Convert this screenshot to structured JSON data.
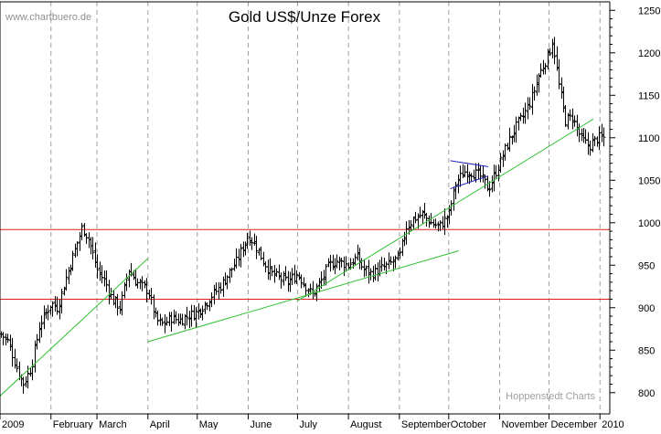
{
  "watermark": "www.chartbuero.de",
  "credit": "Hoppenstedt Charts",
  "chart_data": {
    "type": "ohlc",
    "title": "Gold US$/Unze Forex",
    "xlabel": "",
    "ylabel": "",
    "ylim": [
      775,
      1260
    ],
    "x_range": [
      "2009-01-01",
      "2010-01-07"
    ],
    "y_ticks": [
      800,
      850,
      900,
      950,
      1000,
      1050,
      1100,
      1150,
      1200,
      1250
    ],
    "x_tick_labels": [
      {
        "date": "2009-01-01",
        "label": "2009"
      },
      {
        "date": "2009-02-01",
        "label": "February"
      },
      {
        "date": "2009-03-01",
        "label": "March"
      },
      {
        "date": "2009-04-01",
        "label": "April"
      },
      {
        "date": "2009-05-01",
        "label": "May"
      },
      {
        "date": "2009-06-01",
        "label": "June"
      },
      {
        "date": "2009-07-01",
        "label": "July"
      },
      {
        "date": "2009-08-01",
        "label": "August"
      },
      {
        "date": "2009-09-01",
        "label": "September"
      },
      {
        "date": "2009-10-01",
        "label": "October"
      },
      {
        "date": "2009-11-01",
        "label": "November"
      },
      {
        "date": "2009-12-01",
        "label": "December"
      },
      {
        "date": "2010-01-01",
        "label": "2010"
      }
    ],
    "grid": "vertical-dashed",
    "close_path": [
      [
        "2009-01-01",
        870
      ],
      [
        "2009-01-06",
        860
      ],
      [
        "2009-01-10",
        835
      ],
      [
        "2009-01-15",
        810
      ],
      [
        "2009-01-20",
        830
      ],
      [
        "2009-01-25",
        880
      ],
      [
        "2009-02-01",
        905
      ],
      [
        "2009-02-05",
        900
      ],
      [
        "2009-02-10",
        935
      ],
      [
        "2009-02-15",
        965
      ],
      [
        "2009-02-20",
        995
      ],
      [
        "2009-02-24",
        980
      ],
      [
        "2009-03-01",
        945
      ],
      [
        "2009-03-06",
        930
      ],
      [
        "2009-03-10",
        910
      ],
      [
        "2009-03-15",
        900
      ],
      [
        "2009-03-20",
        945
      ],
      [
        "2009-03-25",
        930
      ],
      [
        "2009-04-01",
        920
      ],
      [
        "2009-04-06",
        885
      ],
      [
        "2009-04-10",
        880
      ],
      [
        "2009-04-15",
        888
      ],
      [
        "2009-04-20",
        885
      ],
      [
        "2009-04-25",
        890
      ],
      [
        "2009-05-01",
        895
      ],
      [
        "2009-05-06",
        905
      ],
      [
        "2009-05-10",
        915
      ],
      [
        "2009-05-15",
        925
      ],
      [
        "2009-05-20",
        940
      ],
      [
        "2009-05-25",
        955
      ],
      [
        "2009-06-01",
        985
      ],
      [
        "2009-06-05",
        975
      ],
      [
        "2009-06-10",
        955
      ],
      [
        "2009-06-15",
        940
      ],
      [
        "2009-06-20",
        935
      ],
      [
        "2009-06-25",
        930
      ],
      [
        "2009-07-01",
        940
      ],
      [
        "2009-07-06",
        925
      ],
      [
        "2009-07-10",
        915
      ],
      [
        "2009-07-15",
        930
      ],
      [
        "2009-07-20",
        950
      ],
      [
        "2009-07-25",
        955
      ],
      [
        "2009-08-01",
        950
      ],
      [
        "2009-08-06",
        960
      ],
      [
        "2009-08-10",
        945
      ],
      [
        "2009-08-15",
        940
      ],
      [
        "2009-08-20",
        945
      ],
      [
        "2009-08-25",
        950
      ],
      [
        "2009-09-01",
        960
      ],
      [
        "2009-09-05",
        995
      ],
      [
        "2009-09-10",
        1005
      ],
      [
        "2009-09-15",
        1010
      ],
      [
        "2009-09-20",
        1000
      ],
      [
        "2009-09-25",
        995
      ],
      [
        "2009-10-01",
        1010
      ],
      [
        "2009-10-05",
        1045
      ],
      [
        "2009-10-10",
        1060
      ],
      [
        "2009-10-15",
        1060
      ],
      [
        "2009-10-20",
        1055
      ],
      [
        "2009-10-25",
        1040
      ],
      [
        "2009-11-01",
        1070
      ],
      [
        "2009-11-05",
        1090
      ],
      [
        "2009-11-10",
        1110
      ],
      [
        "2009-11-15",
        1125
      ],
      [
        "2009-11-20",
        1145
      ],
      [
        "2009-11-25",
        1175
      ],
      [
        "2009-12-01",
        1200
      ],
      [
        "2009-12-03",
        1215
      ],
      [
        "2009-12-07",
        1160
      ],
      [
        "2009-12-11",
        1120
      ],
      [
        "2009-12-15",
        1125
      ],
      [
        "2009-12-20",
        1100
      ],
      [
        "2009-12-25",
        1090
      ],
      [
        "2009-12-31",
        1100
      ],
      [
        "2010-01-04",
        1100
      ]
    ],
    "horizontal_lines": [
      {
        "y": 992,
        "color": "#e02020"
      },
      {
        "y": 910,
        "color": "#e02020"
      }
    ],
    "trend_lines": [
      {
        "from": [
          "2009-01-01",
          796
        ],
        "to": [
          "2009-04-01",
          958
        ],
        "color": "#30c030"
      },
      {
        "from": [
          "2009-04-01",
          860
        ],
        "to": [
          "2009-10-07",
          967
        ],
        "color": "#30c030"
      },
      {
        "from": [
          "2009-07-01",
          908
        ],
        "to": [
          "2009-12-28",
          1122
        ],
        "color": "#30c030"
      },
      {
        "from": [
          "2009-10-02",
          1073
        ],
        "to": [
          "2009-10-25",
          1066
        ],
        "color": "#2020c0"
      },
      {
        "from": [
          "2009-10-02",
          1040
        ],
        "to": [
          "2009-10-25",
          1055
        ],
        "color": "#2020c0"
      }
    ],
    "colors": {
      "bars": "#000000",
      "grid": "#a0a0a0",
      "axis": "#000000",
      "watermark": "#909090",
      "credit": "#a0a0a0"
    }
  }
}
